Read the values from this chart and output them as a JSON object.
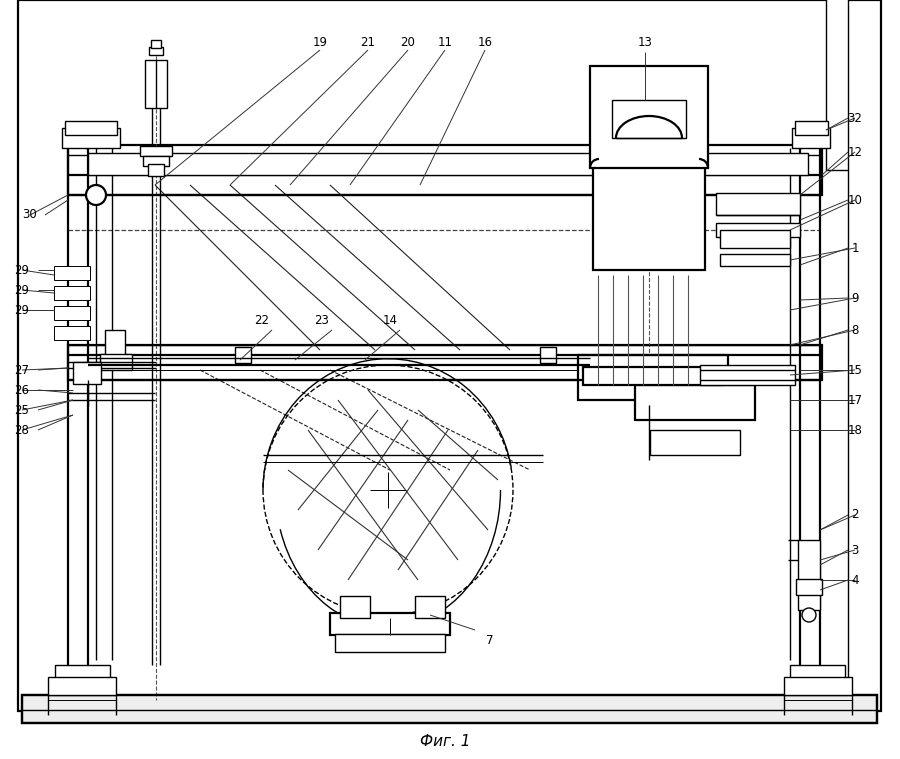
{
  "title": "Фиг. 1",
  "bg": "#ffffff",
  "lc": "#000000",
  "fig_w": 9.0,
  "fig_h": 7.59,
  "dpi": 100
}
